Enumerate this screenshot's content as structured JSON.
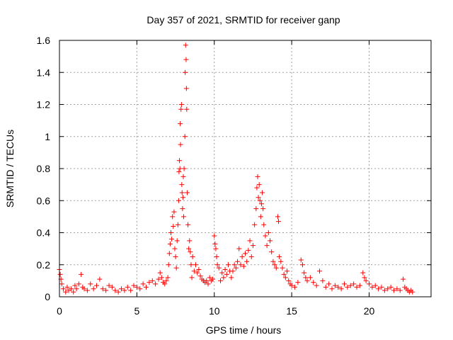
{
  "chart_data": {
    "type": "scatter",
    "title": "Day 357 of 2021, SRMTID for receiver ganp",
    "xlabel": "GPS time / hours",
    "ylabel": "SRMTID / TECUs",
    "xlim": [
      0,
      24
    ],
    "ylim": [
      0,
      1.6
    ],
    "xticks": [
      0,
      5,
      10,
      15,
      20
    ],
    "xtick_labels": [
      "0",
      "5",
      "10",
      "15",
      "20"
    ],
    "yticks": [
      0,
      0.2,
      0.4,
      0.6,
      0.8,
      1.0,
      1.2,
      1.4,
      1.6
    ],
    "ytick_labels": [
      "0",
      "0.2",
      "0.4",
      "0.6",
      "0.8",
      "1",
      "1.2",
      "1.4",
      "1.6"
    ],
    "grid": true,
    "marker": "+",
    "color": "#ff0000",
    "series": [
      {
        "name": "SRMTID",
        "points": [
          [
            0.0,
            0.17
          ],
          [
            0.05,
            0.14
          ],
          [
            0.1,
            0.11
          ],
          [
            0.15,
            0.08
          ],
          [
            0.25,
            0.05
          ],
          [
            0.4,
            0.03
          ],
          [
            0.5,
            0.06
          ],
          [
            0.6,
            0.04
          ],
          [
            0.75,
            0.05
          ],
          [
            0.9,
            0.03
          ],
          [
            1.0,
            0.07
          ],
          [
            1.1,
            0.05
          ],
          [
            1.25,
            0.08
          ],
          [
            1.4,
            0.14
          ],
          [
            1.5,
            0.06
          ],
          [
            1.6,
            0.05
          ],
          [
            1.8,
            0.04
          ],
          [
            2.0,
            0.08
          ],
          [
            2.2,
            0.05
          ],
          [
            2.4,
            0.07
          ],
          [
            2.6,
            0.11
          ],
          [
            2.8,
            0.05
          ],
          [
            3.0,
            0.04
          ],
          [
            3.2,
            0.07
          ],
          [
            3.4,
            0.06
          ],
          [
            3.6,
            0.04
          ],
          [
            3.8,
            0.03
          ],
          [
            4.0,
            0.05
          ],
          [
            4.2,
            0.04
          ],
          [
            4.4,
            0.06
          ],
          [
            4.6,
            0.04
          ],
          [
            4.8,
            0.07
          ],
          [
            5.0,
            0.06
          ],
          [
            5.2,
            0.05
          ],
          [
            5.4,
            0.08
          ],
          [
            5.6,
            0.06
          ],
          [
            5.8,
            0.09
          ],
          [
            6.0,
            0.1
          ],
          [
            6.2,
            0.08
          ],
          [
            6.4,
            0.11
          ],
          [
            6.5,
            0.15
          ],
          [
            6.6,
            0.12
          ],
          [
            6.7,
            0.09
          ],
          [
            6.8,
            0.08
          ],
          [
            6.9,
            0.1
          ],
          [
            7.0,
            0.12
          ],
          [
            7.05,
            0.2
          ],
          [
            7.1,
            0.27
          ],
          [
            7.15,
            0.33
          ],
          [
            7.2,
            0.4
          ],
          [
            7.25,
            0.36
          ],
          [
            7.3,
            0.5
          ],
          [
            7.35,
            0.44
          ],
          [
            7.4,
            0.53
          ],
          [
            7.45,
            0.3
          ],
          [
            7.5,
            0.25
          ],
          [
            7.55,
            0.18
          ],
          [
            7.6,
            0.35
          ],
          [
            7.65,
            0.45
          ],
          [
            7.7,
            0.6
          ],
          [
            7.72,
            0.78
          ],
          [
            7.75,
            0.85
          ],
          [
            7.78,
            0.8
          ],
          [
            7.8,
            1.08
          ],
          [
            7.82,
            0.95
          ],
          [
            7.85,
            1.17
          ],
          [
            7.88,
            1.2
          ],
          [
            7.9,
            0.7
          ],
          [
            7.92,
            0.65
          ],
          [
            7.95,
            0.55
          ],
          [
            7.98,
            0.62
          ],
          [
            8.0,
            0.75
          ],
          [
            8.02,
            0.5
          ],
          [
            8.05,
            0.8
          ],
          [
            8.1,
            1.0
          ],
          [
            8.12,
            1.4
          ],
          [
            8.15,
            1.57
          ],
          [
            8.18,
            1.48
          ],
          [
            8.2,
            1.3
          ],
          [
            8.22,
            1.17
          ],
          [
            8.25,
            0.65
          ],
          [
            8.3,
            0.45
          ],
          [
            8.35,
            0.3
          ],
          [
            8.4,
            0.35
          ],
          [
            8.45,
            0.28
          ],
          [
            8.5,
            0.2
          ],
          [
            8.55,
            0.12
          ],
          [
            8.6,
            0.25
          ],
          [
            8.7,
            0.16
          ],
          [
            8.8,
            0.2
          ],
          [
            8.9,
            0.15
          ],
          [
            9.0,
            0.17
          ],
          [
            9.1,
            0.13
          ],
          [
            9.2,
            0.11
          ],
          [
            9.3,
            0.1
          ],
          [
            9.4,
            0.09
          ],
          [
            9.5,
            0.1
          ],
          [
            9.6,
            0.08
          ],
          [
            9.7,
            0.12
          ],
          [
            9.8,
            0.1
          ],
          [
            9.9,
            0.11
          ],
          [
            10.0,
            0.38
          ],
          [
            10.05,
            0.33
          ],
          [
            10.1,
            0.3
          ],
          [
            10.15,
            0.25
          ],
          [
            10.2,
            0.2
          ],
          [
            10.3,
            0.18
          ],
          [
            10.4,
            0.1
          ],
          [
            10.5,
            0.15
          ],
          [
            10.6,
            0.12
          ],
          [
            10.7,
            0.17
          ],
          [
            10.8,
            0.14
          ],
          [
            10.9,
            0.2
          ],
          [
            11.0,
            0.16
          ],
          [
            11.1,
            0.12
          ],
          [
            11.2,
            0.16
          ],
          [
            11.3,
            0.2
          ],
          [
            11.4,
            0.18
          ],
          [
            11.5,
            0.22
          ],
          [
            11.6,
            0.3
          ],
          [
            11.7,
            0.2
          ],
          [
            11.8,
            0.25
          ],
          [
            11.9,
            0.19
          ],
          [
            12.0,
            0.27
          ],
          [
            12.1,
            0.22
          ],
          [
            12.2,
            0.29
          ],
          [
            12.3,
            0.35
          ],
          [
            12.4,
            0.25
          ],
          [
            12.5,
            0.32
          ],
          [
            12.6,
            0.45
          ],
          [
            12.7,
            0.55
          ],
          [
            12.75,
            0.68
          ],
          [
            12.8,
            0.75
          ],
          [
            12.85,
            0.62
          ],
          [
            12.9,
            0.7
          ],
          [
            12.95,
            0.6
          ],
          [
            13.0,
            0.5
          ],
          [
            13.05,
            0.58
          ],
          [
            13.1,
            0.65
          ],
          [
            13.15,
            0.55
          ],
          [
            13.2,
            0.45
          ],
          [
            13.3,
            0.38
          ],
          [
            13.4,
            0.32
          ],
          [
            13.5,
            0.4
          ],
          [
            13.6,
            0.35
          ],
          [
            13.7,
            0.28
          ],
          [
            13.8,
            0.22
          ],
          [
            13.9,
            0.2
          ],
          [
            14.0,
            0.18
          ],
          [
            14.1,
            0.5
          ],
          [
            14.15,
            0.47
          ],
          [
            14.2,
            0.25
          ],
          [
            14.3,
            0.22
          ],
          [
            14.4,
            0.18
          ],
          [
            14.5,
            0.14
          ],
          [
            14.6,
            0.12
          ],
          [
            14.7,
            0.16
          ],
          [
            14.8,
            0.1
          ],
          [
            14.9,
            0.08
          ],
          [
            15.0,
            0.07
          ],
          [
            15.2,
            0.06
          ],
          [
            15.4,
            0.09
          ],
          [
            15.6,
            0.23
          ],
          [
            15.7,
            0.2
          ],
          [
            15.8,
            0.15
          ],
          [
            15.9,
            0.12
          ],
          [
            16.0,
            0.1
          ],
          [
            16.2,
            0.12
          ],
          [
            16.4,
            0.09
          ],
          [
            16.6,
            0.07
          ],
          [
            16.8,
            0.16
          ],
          [
            17.0,
            0.1
          ],
          [
            17.2,
            0.06
          ],
          [
            17.4,
            0.08
          ],
          [
            17.6,
            0.05
          ],
          [
            17.8,
            0.07
          ],
          [
            18.0,
            0.06
          ],
          [
            18.2,
            0.05
          ],
          [
            18.4,
            0.08
          ],
          [
            18.6,
            0.06
          ],
          [
            18.8,
            0.07
          ],
          [
            19.0,
            0.08
          ],
          [
            19.2,
            0.06
          ],
          [
            19.4,
            0.07
          ],
          [
            19.6,
            0.15
          ],
          [
            19.7,
            0.12
          ],
          [
            19.8,
            0.1
          ],
          [
            20.0,
            0.08
          ],
          [
            20.2,
            0.06
          ],
          [
            20.4,
            0.07
          ],
          [
            20.6,
            0.05
          ],
          [
            20.8,
            0.06
          ],
          [
            21.0,
            0.04
          ],
          [
            21.2,
            0.05
          ],
          [
            21.4,
            0.06
          ],
          [
            21.6,
            0.04
          ],
          [
            21.8,
            0.05
          ],
          [
            22.0,
            0.04
          ],
          [
            22.2,
            0.11
          ],
          [
            22.3,
            0.06
          ],
          [
            22.4,
            0.05
          ],
          [
            22.5,
            0.04
          ],
          [
            22.6,
            0.03
          ],
          [
            22.7,
            0.04
          ],
          [
            22.8,
            0.03
          ]
        ]
      }
    ]
  }
}
